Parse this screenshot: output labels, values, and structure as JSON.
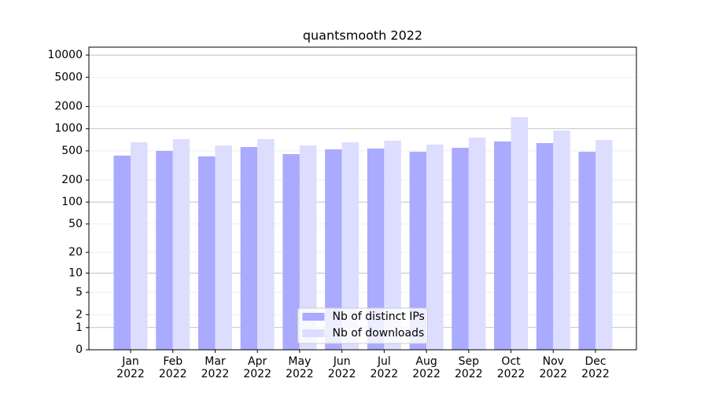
{
  "chart_data": {
    "type": "bar",
    "title": "quantsmooth 2022",
    "categories": [
      "Jan 2022",
      "Feb 2022",
      "Mar 2022",
      "Apr 2022",
      "May 2022",
      "Jun 2022",
      "Jul 2022",
      "Aug 2022",
      "Sep 2022",
      "Oct 2022",
      "Nov 2022",
      "Dec 2022"
    ],
    "series": [
      {
        "name": "Nb of distinct IPs",
        "color": "#aaaaff",
        "values": [
          431,
          499,
          420,
          564,
          452,
          524,
          537,
          486,
          550,
          670,
          638,
          486
        ]
      },
      {
        "name": "Nb of downloads",
        "color": "#ddddff",
        "values": [
          654,
          722,
          592,
          722,
          592,
          654,
          687,
          608,
          758,
          1436,
          946,
          704
        ]
      }
    ],
    "yscale": "log1p",
    "ylim": [
      0,
      12800
    ],
    "yticks": [
      0,
      1,
      2,
      5,
      10,
      20,
      50,
      100,
      200,
      500,
      1000,
      2000,
      5000,
      10000
    ],
    "grid": true,
    "legend": "lower center"
  }
}
